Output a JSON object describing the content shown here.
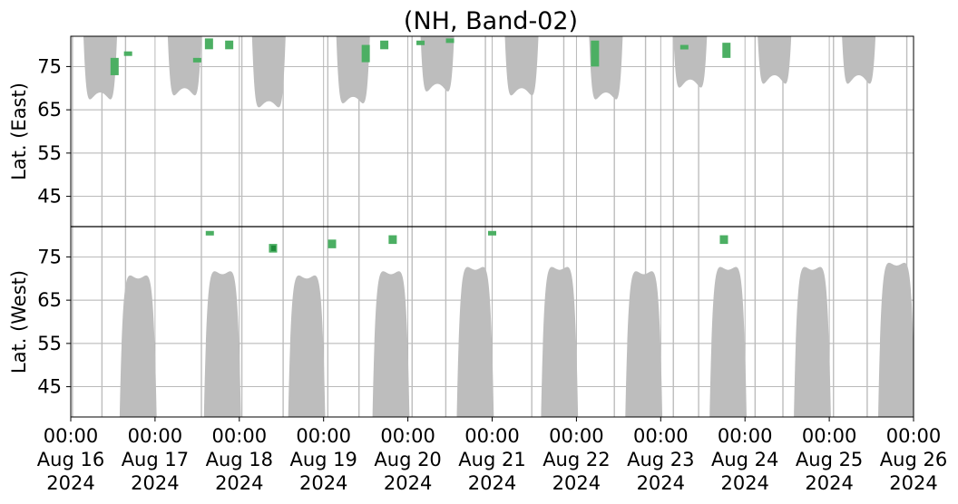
{
  "chart_data": {
    "type": "heatmap",
    "title": "(NH, Band-02)",
    "panels": [
      {
        "name": "east",
        "ylabel": "Lat. (East)",
        "yticks": [
          45,
          55,
          65,
          75
        ],
        "ylim": [
          38,
          82
        ],
        "direction": "up"
      },
      {
        "name": "west",
        "ylabel": "Lat. (West)",
        "yticks": [
          75,
          65,
          55,
          45
        ],
        "ylim": [
          38,
          82
        ],
        "direction": "down"
      }
    ],
    "xlim_days": [
      0,
      10
    ],
    "x_ticks": [
      {
        "time": "00:00",
        "date": "Aug 16",
        "year": "2024"
      },
      {
        "time": "00:00",
        "date": "Aug 17",
        "year": "2024"
      },
      {
        "time": "00:00",
        "date": "Aug 18",
        "year": "2024"
      },
      {
        "time": "00:00",
        "date": "Aug 19",
        "year": "2024"
      },
      {
        "time": "00:00",
        "date": "Aug 20",
        "year": "2024"
      },
      {
        "time": "00:00",
        "date": "Aug 21",
        "year": "2024"
      },
      {
        "time": "00:00",
        "date": "Aug 22",
        "year": "2024"
      },
      {
        "time": "00:00",
        "date": "Aug 23",
        "year": "2024"
      },
      {
        "time": "00:00",
        "date": "Aug 24",
        "year": "2024"
      },
      {
        "time": "00:00",
        "date": "Aug 25",
        "year": "2024"
      },
      {
        "time": "00:00",
        "date": "Aug 26",
        "year": "2024"
      }
    ],
    "grid": true,
    "colors": {
      "coverage": "#bdbdbd",
      "detection": "#4caf63",
      "detection_dark": "#1f8a3a",
      "axes": "#000000",
      "grid": "#b0b0b0"
    },
    "coverage_arcs": [
      {
        "panel": "east",
        "center_day": 0.35,
        "half_width_days": 0.2,
        "min_lat": 69
      },
      {
        "panel": "east",
        "center_day": 1.35,
        "half_width_days": 0.2,
        "min_lat": 70
      },
      {
        "panel": "east",
        "center_day": 2.35,
        "half_width_days": 0.2,
        "min_lat": 67
      },
      {
        "panel": "east",
        "center_day": 3.35,
        "half_width_days": 0.2,
        "min_lat": 68
      },
      {
        "panel": "east",
        "center_day": 4.35,
        "half_width_days": 0.2,
        "min_lat": 71
      },
      {
        "panel": "east",
        "center_day": 5.35,
        "half_width_days": 0.2,
        "min_lat": 70
      },
      {
        "panel": "east",
        "center_day": 6.35,
        "half_width_days": 0.2,
        "min_lat": 69
      },
      {
        "panel": "east",
        "center_day": 7.35,
        "half_width_days": 0.2,
        "min_lat": 72
      },
      {
        "panel": "east",
        "center_day": 8.35,
        "half_width_days": 0.2,
        "min_lat": 73
      },
      {
        "panel": "east",
        "center_day": 9.35,
        "half_width_days": 0.2,
        "min_lat": 73
      },
      {
        "panel": "west",
        "center_day": 0.8,
        "half_width_days": 0.22,
        "min_lat": 70
      },
      {
        "panel": "west",
        "center_day": 1.8,
        "half_width_days": 0.22,
        "min_lat": 71
      },
      {
        "panel": "west",
        "center_day": 2.8,
        "half_width_days": 0.22,
        "min_lat": 70
      },
      {
        "panel": "west",
        "center_day": 3.8,
        "half_width_days": 0.22,
        "min_lat": 71
      },
      {
        "panel": "west",
        "center_day": 4.8,
        "half_width_days": 0.22,
        "min_lat": 72
      },
      {
        "panel": "west",
        "center_day": 5.8,
        "half_width_days": 0.22,
        "min_lat": 72
      },
      {
        "panel": "west",
        "center_day": 6.8,
        "half_width_days": 0.22,
        "min_lat": 71
      },
      {
        "panel": "west",
        "center_day": 7.8,
        "half_width_days": 0.22,
        "min_lat": 72
      },
      {
        "panel": "west",
        "center_day": 8.8,
        "half_width_days": 0.22,
        "min_lat": 72
      },
      {
        "panel": "west",
        "center_day": 9.8,
        "half_width_days": 0.22,
        "min_lat": 73
      }
    ],
    "coverage_streaks": [
      0.02,
      0.37,
      0.65,
      1.55,
      2.03,
      2.52,
      3.05,
      3.42,
      4.05,
      4.45,
      4.92,
      5.47,
      5.85,
      6.45,
      6.82,
      7.15,
      7.45,
      8.12,
      8.45,
      9.05,
      9.45,
      9.92
    ],
    "detections": [
      {
        "panel": "east",
        "day": 0.52,
        "lat_start": 77,
        "lat_end": 73,
        "dark": false
      },
      {
        "panel": "east",
        "day": 0.68,
        "lat_start": 78.5,
        "lat_end": 78,
        "dark": false
      },
      {
        "panel": "east",
        "day": 1.5,
        "lat_start": 77,
        "lat_end": 76.5,
        "dark": false
      },
      {
        "panel": "east",
        "day": 1.64,
        "lat_start": 81.5,
        "lat_end": 79,
        "dark": false
      },
      {
        "panel": "east",
        "day": 1.88,
        "lat_start": 81,
        "lat_end": 79,
        "dark": false
      },
      {
        "panel": "east",
        "day": 3.5,
        "lat_start": 80,
        "lat_end": 76,
        "dark": false
      },
      {
        "panel": "east",
        "day": 3.72,
        "lat_start": 81,
        "lat_end": 79,
        "dark": false
      },
      {
        "panel": "east",
        "day": 4.15,
        "lat_start": 81,
        "lat_end": 80,
        "dark": false
      },
      {
        "panel": "east",
        "day": 4.5,
        "lat_start": 81.5,
        "lat_end": 81,
        "dark": false
      },
      {
        "panel": "east",
        "day": 6.22,
        "lat_start": 81,
        "lat_end": 75,
        "dark": false
      },
      {
        "panel": "east",
        "day": 7.28,
        "lat_start": 80,
        "lat_end": 79,
        "dark": false
      },
      {
        "panel": "east",
        "day": 7.78,
        "lat_start": 80.5,
        "lat_end": 77,
        "dark": false
      },
      {
        "panel": "west",
        "day": 1.65,
        "lat_start": 81,
        "lat_end": 80,
        "dark": false
      },
      {
        "panel": "west",
        "day": 2.4,
        "lat_start": 78,
        "lat_end": 76,
        "dark": true
      },
      {
        "panel": "west",
        "day": 3.1,
        "lat_start": 79,
        "lat_end": 77,
        "dark": false
      },
      {
        "panel": "west",
        "day": 3.82,
        "lat_start": 80,
        "lat_end": 78,
        "dark": false
      },
      {
        "panel": "west",
        "day": 5.0,
        "lat_start": 81,
        "lat_end": 80,
        "dark": false
      },
      {
        "panel": "west",
        "day": 7.75,
        "lat_start": 80,
        "lat_end": 78,
        "dark": false
      }
    ]
  }
}
